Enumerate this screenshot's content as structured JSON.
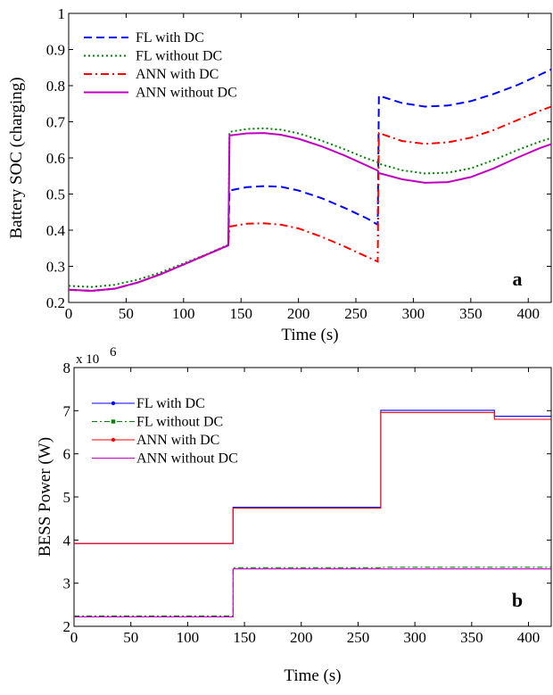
{
  "chart_data": [
    {
      "type": "line",
      "panel_label": "a",
      "xlabel": "Time (s)",
      "ylabel": "Battery SOC (charging)",
      "xlim": [
        0,
        420
      ],
      "ylim": [
        0.2,
        1
      ],
      "xticks": [
        "0",
        "50",
        "100",
        "150",
        "200",
        "250",
        "300",
        "350",
        "400"
      ],
      "yticks": [
        "0.2",
        "0.3",
        "0.4",
        "0.5",
        "0.6",
        "0.7",
        "0.8",
        "0.9",
        "1"
      ],
      "grid": false,
      "legend_position": "top-left",
      "series": [
        {
          "name": "FL with DC",
          "color": "#0000ff",
          "dash": "dashed",
          "x": [
            0,
            20,
            40,
            60,
            80,
            100,
            120,
            139,
            140,
            155,
            170,
            185,
            200,
            220,
            240,
            260,
            269,
            270,
            290,
            310,
            330,
            350,
            370,
            390,
            410,
            420
          ],
          "y": [
            0.235,
            0.232,
            0.238,
            0.255,
            0.278,
            0.305,
            0.332,
            0.358,
            0.51,
            0.519,
            0.522,
            0.52,
            0.51,
            0.489,
            0.462,
            0.432,
            0.415,
            0.772,
            0.752,
            0.742,
            0.745,
            0.757,
            0.777,
            0.801,
            0.83,
            0.845
          ]
        },
        {
          "name": "FL without DC",
          "color": "#008000",
          "dash": "dotted",
          "x": [
            0,
            20,
            40,
            60,
            80,
            100,
            120,
            139,
            140,
            155,
            170,
            185,
            200,
            220,
            240,
            260,
            269,
            270,
            290,
            310,
            330,
            350,
            370,
            390,
            410,
            420
          ],
          "y": [
            0.246,
            0.243,
            0.249,
            0.263,
            0.283,
            0.308,
            0.333,
            0.36,
            0.672,
            0.68,
            0.682,
            0.678,
            0.668,
            0.648,
            0.624,
            0.598,
            0.588,
            0.584,
            0.566,
            0.557,
            0.559,
            0.571,
            0.594,
            0.621,
            0.645,
            0.655
          ]
        },
        {
          "name": "ANN with DC",
          "color": "#ff0000",
          "dash": "dashdot",
          "x": [
            0,
            20,
            40,
            60,
            80,
            100,
            120,
            139,
            140,
            155,
            170,
            185,
            200,
            220,
            240,
            260,
            269,
            270,
            290,
            310,
            330,
            350,
            370,
            390,
            410,
            420
          ],
          "y": [
            0.235,
            0.232,
            0.238,
            0.255,
            0.278,
            0.305,
            0.332,
            0.358,
            0.41,
            0.418,
            0.419,
            0.415,
            0.405,
            0.382,
            0.355,
            0.326,
            0.313,
            0.669,
            0.647,
            0.639,
            0.643,
            0.656,
            0.677,
            0.704,
            0.73,
            0.742
          ]
        },
        {
          "name": "ANN without DC",
          "color": "#c000c0",
          "dash": "solid",
          "x": [
            0,
            20,
            40,
            60,
            80,
            100,
            120,
            139,
            140,
            155,
            170,
            185,
            200,
            220,
            240,
            260,
            269,
            270,
            290,
            310,
            330,
            350,
            370,
            390,
            410,
            420
          ],
          "y": [
            0.235,
            0.232,
            0.238,
            0.255,
            0.278,
            0.305,
            0.332,
            0.358,
            0.662,
            0.668,
            0.669,
            0.664,
            0.653,
            0.632,
            0.607,
            0.578,
            0.565,
            0.558,
            0.541,
            0.531,
            0.533,
            0.547,
            0.571,
            0.6,
            0.627,
            0.638
          ]
        }
      ]
    },
    {
      "type": "line",
      "panel_label": "b",
      "xlabel": "Time (s)",
      "ylabel": "BESS Power (W)",
      "scale_label": "x 10",
      "scale_exponent": "6",
      "xlim": [
        0,
        420
      ],
      "ylim": [
        2,
        8
      ],
      "xticks": [
        "0",
        "50",
        "100",
        "150",
        "200",
        "250",
        "300",
        "350",
        "400"
      ],
      "yticks": [
        "2",
        "3",
        "4",
        "5",
        "6",
        "7",
        "8"
      ],
      "grid": false,
      "legend_position": "top-left",
      "series": [
        {
          "name": "FL with DC",
          "color": "#0000ff",
          "marker": "dot",
          "dash": "solid",
          "x": [
            0,
            140,
            140,
            270,
            270,
            370,
            370,
            420
          ],
          "y": [
            3.92,
            3.92,
            4.76,
            4.76,
            7.01,
            7.01,
            6.87,
            6.87
          ]
        },
        {
          "name": "FL without DC",
          "color": "#008000",
          "marker": "square",
          "dash": "dashdot",
          "x": [
            0,
            140,
            140,
            270,
            270,
            420
          ],
          "y": [
            2.24,
            2.24,
            3.36,
            3.36,
            3.37,
            3.37
          ]
        },
        {
          "name": "ANN with DC",
          "color": "#ff0000",
          "marker": "dot",
          "dash": "solid",
          "x": [
            0,
            140,
            140,
            270,
            270,
            370,
            370,
            420
          ],
          "y": [
            3.92,
            3.92,
            4.74,
            4.74,
            6.96,
            6.96,
            6.8,
            6.8
          ]
        },
        {
          "name": "ANN without DC",
          "color": "#c000c0",
          "marker": "none",
          "dash": "solid",
          "x": [
            0,
            140,
            140,
            270,
            270,
            420
          ],
          "y": [
            2.22,
            2.22,
            3.33,
            3.33,
            3.33,
            3.33
          ]
        }
      ]
    }
  ]
}
